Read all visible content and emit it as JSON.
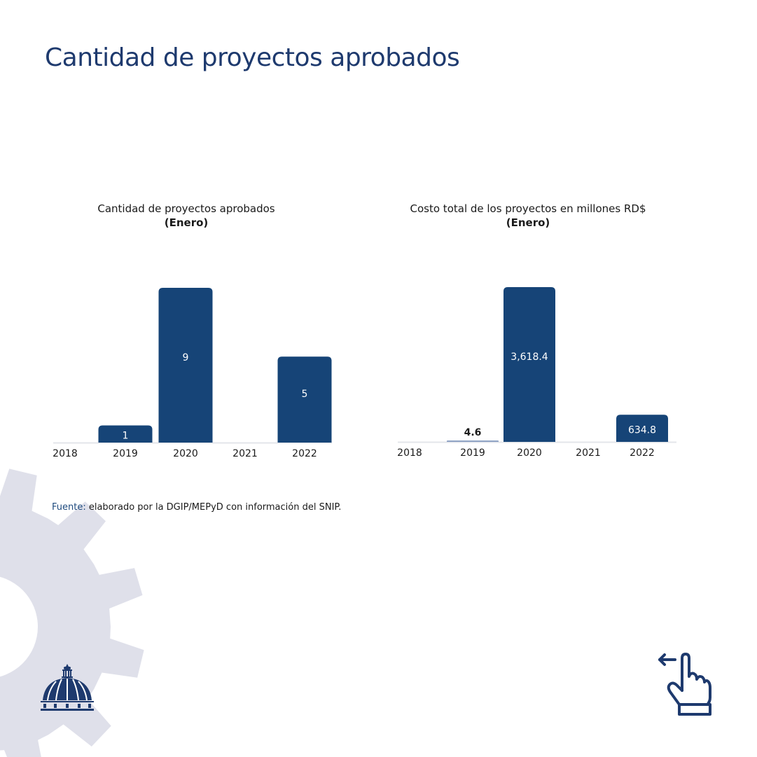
{
  "page": {
    "title": "Cantidad de proyectos aprobados",
    "source_label": "Fuente:",
    "source_text": " elaborado por la DGIP/MEPyD con información del SNIP.",
    "logo_icon": "dome-logo-icon",
    "swipe_icon": "swipe-left-hand-icon"
  },
  "colors": {
    "title": "#1e3a6e",
    "bar": "#164477",
    "bar_small": "#8fa3c4",
    "baseline": "#e3e5ea",
    "gear": "#dfe0ea"
  },
  "chart_data": [
    {
      "type": "bar",
      "title": "Cantidad de proyectos aprobados",
      "subtitle": "(Enero)",
      "categories": [
        "2018",
        "2019",
        "2020",
        "2021",
        "2022"
      ],
      "values": [
        null,
        1,
        9,
        null,
        5
      ],
      "labels": [
        "",
        "1",
        "9",
        "",
        "5"
      ],
      "xlabel": "",
      "ylabel": "",
      "ylim": [
        0,
        9
      ],
      "grid": false
    },
    {
      "type": "bar",
      "title": "Costo total de los proyectos en millones RD$",
      "subtitle": "(Enero)",
      "categories": [
        "2018",
        "2019",
        "2020",
        "2021",
        "2022"
      ],
      "values": [
        null,
        4.6,
        3618.4,
        null,
        634.8
      ],
      "labels": [
        "",
        "4.6",
        "3,618.4",
        "",
        "634.8"
      ],
      "xlabel": "",
      "ylabel": "",
      "ylim": [
        0,
        3618.4
      ],
      "grid": false
    }
  ]
}
